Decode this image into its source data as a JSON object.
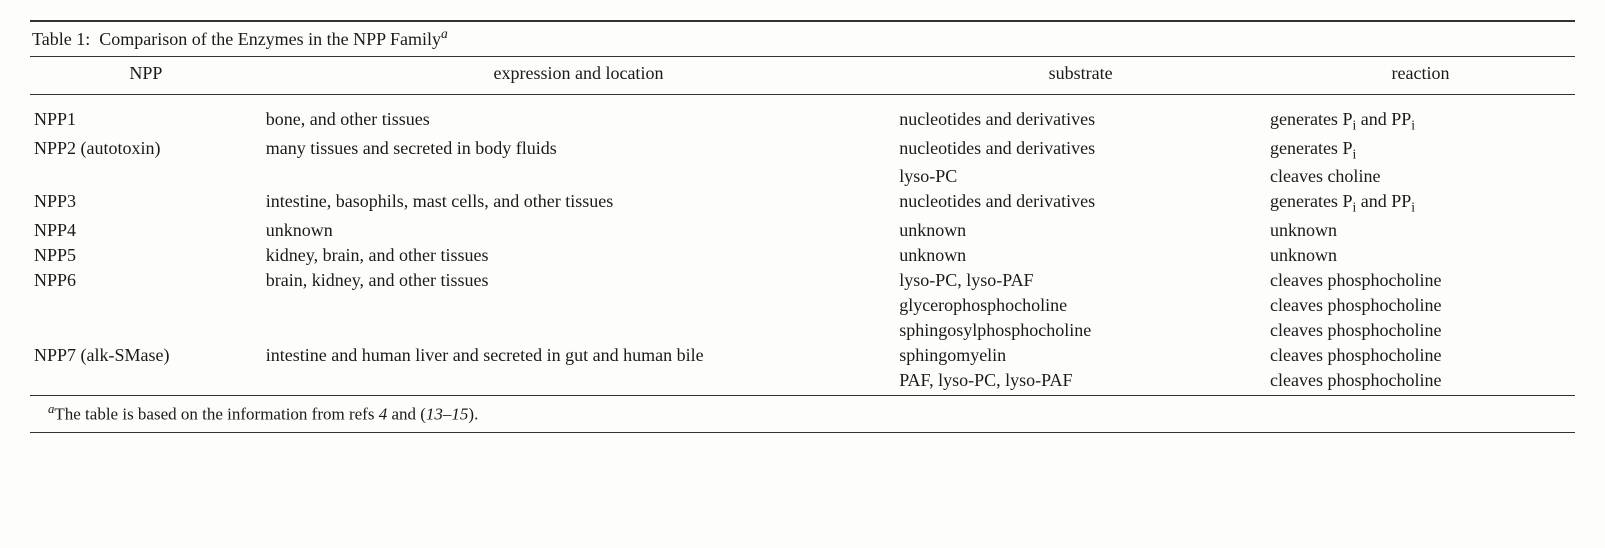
{
  "table": {
    "caption_prefix": "Table 1:",
    "caption_text": "Comparison of the Enzymes in the NPP Family",
    "caption_sup": "a",
    "columns": {
      "npp": "NPP",
      "expr": "expression and location",
      "sub": "substrate",
      "rxn": "reaction"
    },
    "rows": [
      {
        "npp": "NPP1",
        "expr": "bone, and other tissues",
        "sub": "nucleotides and derivatives",
        "rxn_html": "generates P<sub>i</sub> and PP<sub>i</sub>"
      },
      {
        "npp": "NPP2 (autotoxin)",
        "expr": "many tissues and secreted in body fluids",
        "sub": "nucleotides and derivatives",
        "rxn_html": "generates P<sub>i</sub>"
      },
      {
        "npp": "",
        "expr": "",
        "sub": "lyso-PC",
        "rxn_html": "cleaves choline"
      },
      {
        "npp": "NPP3",
        "expr": "intestine, basophils, mast cells, and other tissues",
        "sub": "nucleotides and derivatives",
        "rxn_html": "generates P<sub>i</sub> and PP<sub>i</sub>"
      },
      {
        "npp": "NPP4",
        "expr": "unknown",
        "sub": "unknown",
        "rxn_html": "unknown"
      },
      {
        "npp": "NPP5",
        "expr": "kidney, brain, and other tissues",
        "sub": "unknown",
        "rxn_html": "unknown"
      },
      {
        "npp": "NPP6",
        "expr": "brain, kidney, and other tissues",
        "sub": "lyso-PC, lyso-PAF",
        "rxn_html": "cleaves phosphocholine"
      },
      {
        "npp": "",
        "expr": "",
        "sub": "glycerophosphocholine",
        "rxn_html": "cleaves phosphocholine"
      },
      {
        "npp": "",
        "expr": "",
        "sub": "sphingosylphosphocholine",
        "rxn_html": "cleaves phosphocholine"
      },
      {
        "npp": "NPP7 (alk-SMase)",
        "expr": "intestine and human liver and secreted in gut and human bile",
        "sub": "sphingomyelin",
        "rxn_html": "cleaves phosphocholine"
      },
      {
        "npp": "",
        "expr": "",
        "sub": "PAF, lyso-PC, lyso-PAF",
        "rxn_html": "cleaves phosphocholine"
      }
    ],
    "footnote_sup": "a",
    "footnote_text_1": "The table is based on the information from refs ",
    "footnote_ref1": "4",
    "footnote_text_2": " and (",
    "footnote_ref2": "13–15",
    "footnote_text_3": ")."
  },
  "style": {
    "font_family": "Times New Roman",
    "font_size_pt": 18,
    "text_color": "#1a1a1a",
    "rule_color": "#333333",
    "background": "#fdfdfb",
    "col_widths_pct": [
      15,
      41,
      24,
      20
    ]
  }
}
